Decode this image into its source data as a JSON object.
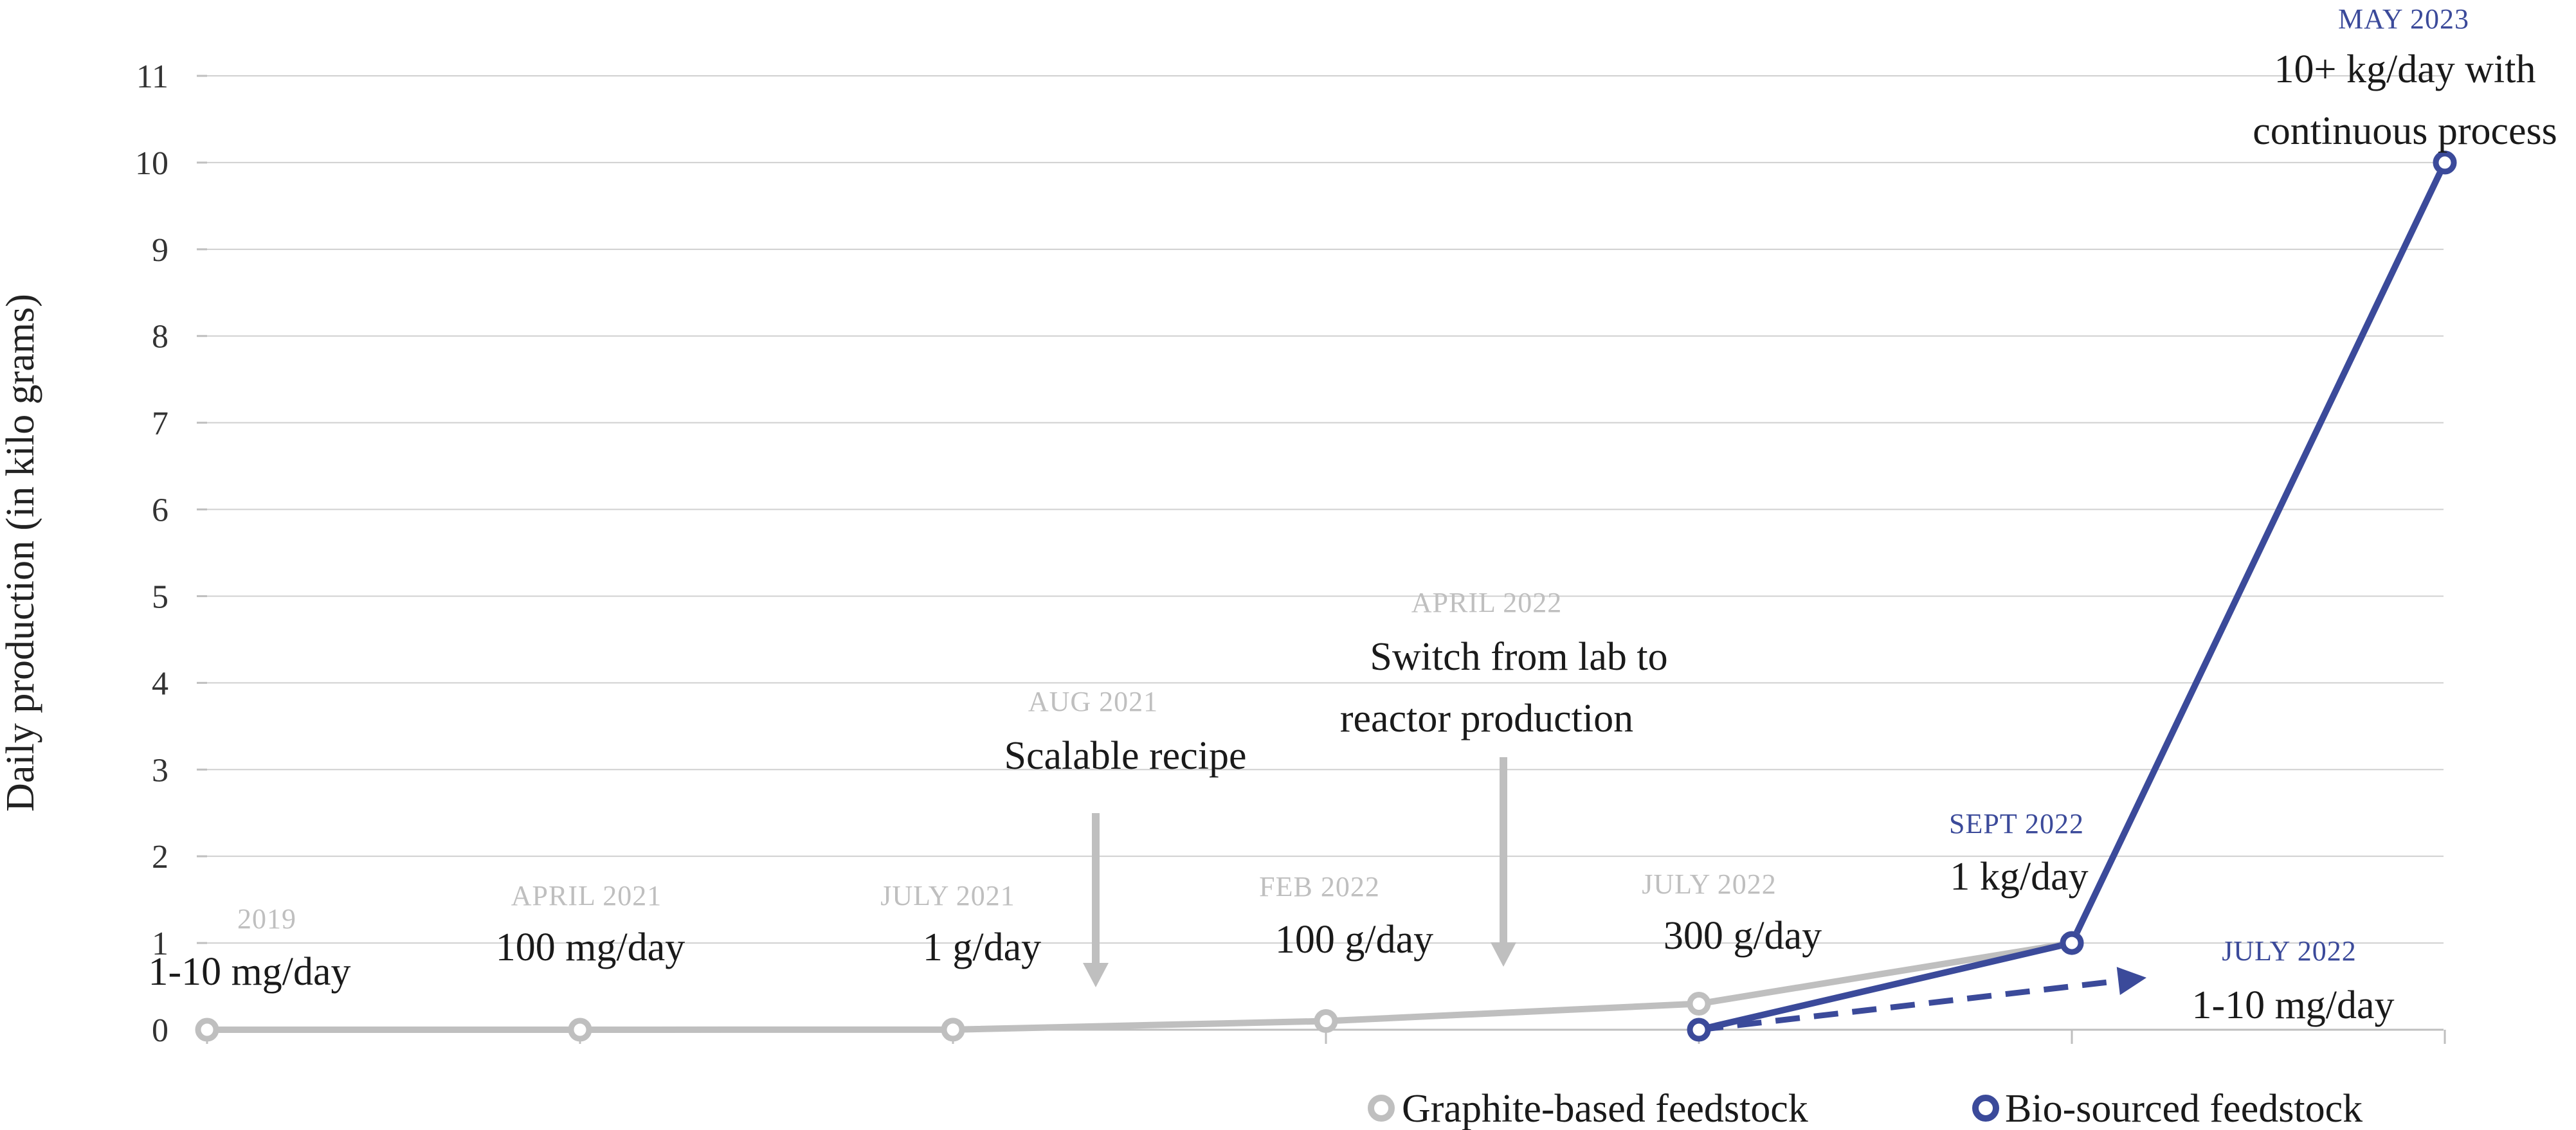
{
  "chart_data": {
    "type": "line",
    "title": "",
    "ylabel": "Daily production (in kilo grams)",
    "xlabel": "",
    "ylim": [
      0,
      11
    ],
    "yticks": [
      0,
      1,
      2,
      3,
      4,
      5,
      6,
      7,
      8,
      9,
      10,
      11
    ],
    "ytick_labels": [
      "0",
      "1",
      "2",
      "3",
      "4",
      "5",
      "6",
      "7",
      "8",
      "9",
      "10",
      "11"
    ],
    "grid": true,
    "legend_position": "bottom-right",
    "x_slots": 7,
    "series": [
      {
        "name": "Graphite-based feedstock",
        "color": "#bfbfbf",
        "points": [
          {
            "x": 0,
            "y": 1e-05
          },
          {
            "x": 1,
            "y": 0.0001
          },
          {
            "x": 2,
            "y": 0.001
          },
          {
            "x": 3,
            "y": 0.1
          },
          {
            "x": 4,
            "y": 0.3
          },
          {
            "x": 5,
            "y": 1
          }
        ]
      },
      {
        "name": "Bio-sourced feedstock",
        "color": "#3b4a9a",
        "points": [
          {
            "x": 4,
            "y": 0
          },
          {
            "x": 5,
            "y": 1
          },
          {
            "x": 6,
            "y": 10
          }
        ]
      }
    ],
    "projection": {
      "from": {
        "x": 4,
        "y": 0
      },
      "to": {
        "x": 5.2,
        "y": 0.6
      },
      "color": "#3b4a9a",
      "style": "dashed"
    },
    "annotations": [
      {
        "date": "2019",
        "label": "1-10 mg/day",
        "tone": "grey"
      },
      {
        "date": "APRIL 2021",
        "label": "100 mg/day",
        "tone": "grey"
      },
      {
        "date": "JULY 2021",
        "label": "1 g/day",
        "tone": "grey"
      },
      {
        "date": "AUG 2021",
        "label": "Scalable recipe",
        "tone": "grey"
      },
      {
        "date": "FEB 2022",
        "label": "100 g/day",
        "tone": "grey"
      },
      {
        "date": "APRIL 2022",
        "label_line1": "Switch from lab to",
        "label_line2": "reactor production",
        "tone": "grey"
      },
      {
        "date": "JULY 2022",
        "label": "300 g/day",
        "tone": "grey"
      },
      {
        "date": "SEPT 2022",
        "label": "1 kg/day",
        "tone": "blue"
      },
      {
        "date": "JULY 2022",
        "label": "1-10 mg/day",
        "tone": "blue"
      },
      {
        "date": "MAY 2023",
        "label_line1": "10+ kg/day with",
        "label_line2": "continuous process",
        "tone": "blue"
      }
    ]
  }
}
